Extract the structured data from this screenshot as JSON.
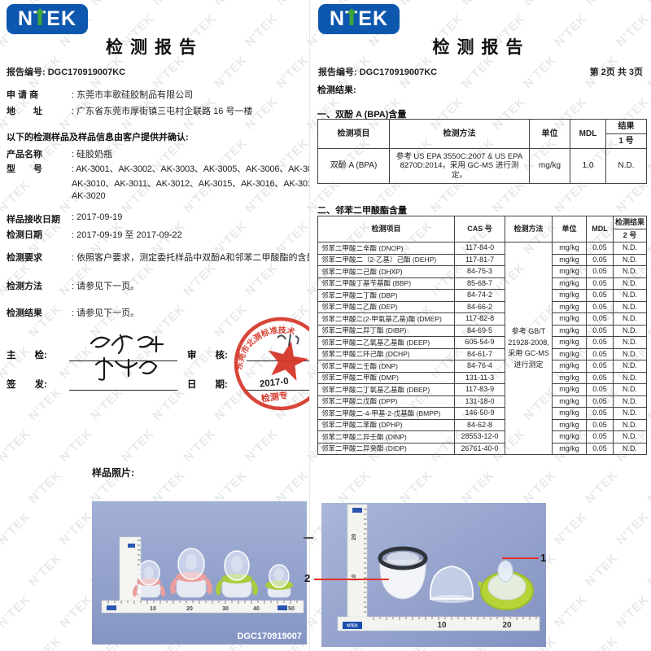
{
  "watermark_text": "N'TEK",
  "colors": {
    "logo_blue": "#0d57ae",
    "logo_green": "#3fa33c",
    "stamp_red": "#d53528",
    "annotation_red": "#e23128",
    "photo_bg_top": "#a3b0d6",
    "photo_bg_bottom": "#8595c3"
  },
  "page1": {
    "logo_text_n": "N",
    "logo_text_t": "T",
    "logo_text_ek": "EK",
    "title": "检测报告",
    "report_no_line": "报告编号: DGC170919007KC",
    "info_fields": [
      {
        "label": "申 请 商",
        "value": ": 东莞市丰歌硅胶制品有限公司"
      },
      {
        "label": "地　　址",
        "value": ": 广东省东莞市厚街镇三屯村企联路 16 号一楼"
      }
    ],
    "confirm_note": "以下的检测样品及样品信息由客户提供并确认:",
    "product_field": {
      "label": "产品名称",
      "value": ": 硅胶奶瓶"
    },
    "model_field_label": "型　　号",
    "model_lines": [
      ": AK-3001、AK-3002、AK-3003、AK-3005、AK-3006、AK-3007、AK-3",
      "AK-3010、AK-3011、AK-3012、AK-3015、AK-3016、AK-3017、AK-3",
      "AK-3020"
    ],
    "date_fields": [
      {
        "label": "样品接收日期",
        "value": ": 2017-09-19"
      },
      {
        "label": "检测日期",
        "value": ": 2017-09-19 至 2017-09-22"
      }
    ],
    "request_fields": [
      {
        "label": "检测要求",
        "value": ": 依照客户要求，测定委托样品中双酚A和邻苯二甲酸酯的含量。"
      },
      {
        "label": "检测方法",
        "value": ": 请参见下一页。"
      },
      {
        "label": "检测结果",
        "value": ": 请参见下一页。"
      }
    ],
    "signature": {
      "chief_label": "主　　检:",
      "review_label": "审　　核:",
      "issue_label": "签　　发:",
      "date_label": "日　　期:"
    },
    "stamp": {
      "arc_text": "东莞市北测标准技术",
      "date_text": "2017-0",
      "bottom_text": "检测专"
    },
    "photo_section_label": "样品照片:",
    "photo1": {
      "id_text": "DGC170919007",
      "ruler_numbers": [
        "10",
        "20",
        "30",
        "40",
        "50"
      ]
    }
  },
  "page2": {
    "title": "检测报告",
    "report_no_line": "报告编号: DGC170919007KC",
    "page_info": "第 2页 共 3页",
    "results_label": "检测结果:",
    "section1_title": "一、双酚 A (BPA)含量",
    "bpa_table": {
      "headers": {
        "item": "检测项目",
        "method": "检测方法",
        "unit": "单位",
        "mdl": "MDL",
        "result": "结果",
        "result_sub": "1 号"
      },
      "row": {
        "item": "双酚 A (BPA)",
        "method": "参考 US EPA 3550C:2007 & US EPA 8270D:2014，采用 GC-MS 进行测定。",
        "unit": "mg/kg",
        "mdl": "1.0",
        "result": "N.D."
      }
    },
    "section2_title": "二、邻苯二甲酸酯含量",
    "phthalate_table": {
      "headers": {
        "item": "检测项目",
        "cas": "CAS 号",
        "method": "检测方法",
        "unit": "单位",
        "mdl": "MDL",
        "result": "检测结果",
        "result_sub": "2 号"
      },
      "method_merged": "参考 GB/T 21928-2008, 采用 GC-MS 进行测定",
      "rows": [
        [
          "邻苯二甲酸二辛酯 (DNOP)",
          "117-84-0",
          "mg/kg",
          "0.05",
          "N.D."
        ],
        [
          "邻苯二甲酸二（2-乙基）己酯 (DEHP)",
          "117-81-7",
          "mg/kg",
          "0.05",
          "N.D."
        ],
        [
          "邻苯二甲酸二己酯 (DHXP)",
          "84-75-3",
          "mg/kg",
          "0.05",
          "N.D."
        ],
        [
          "邻苯二甲酸丁基苄基酯 (BBP)",
          "85-68-7",
          "mg/kg",
          "0.05",
          "N.D."
        ],
        [
          "邻苯二甲酸二丁酯 (DBP)",
          "84-74-2",
          "mg/kg",
          "0.05",
          "N.D."
        ],
        [
          "邻苯二甲酸二乙酯 (DEP)",
          "84-66-2",
          "mg/kg",
          "0.05",
          "N.D."
        ],
        [
          "邻苯二甲酸二(2-甲氧基乙基)酯 (DMEP)",
          "117-82-8",
          "mg/kg",
          "0.05",
          "N.D."
        ],
        [
          "邻苯二甲酸二异丁酯 (DIBP)",
          "84-69-5",
          "mg/kg",
          "0.05",
          "N.D."
        ],
        [
          "邻苯二甲酸二乙氧基乙基酯 (DEEP)",
          "605-54-9",
          "mg/kg",
          "0.05",
          "N.D."
        ],
        [
          "邻苯二甲酸二环己酯 (DCHP)",
          "84-61-7",
          "mg/kg",
          "0.05",
          "N.D."
        ],
        [
          "邻苯二甲酸二壬酯 (DNP)",
          "84-76-4",
          "mg/kg",
          "0.05",
          "N.D."
        ],
        [
          "邻苯二甲酸二甲酯 (DMP)",
          "131-11-3",
          "mg/kg",
          "0.05",
          "N.D."
        ],
        [
          "邻苯二甲酸二丁氧基乙基酯 (DBEP)",
          "117-83-9",
          "mg/kg",
          "0.05",
          "N.D."
        ],
        [
          "邻苯二甲酸二戊酯 (DPP)",
          "131-18-0",
          "mg/kg",
          "0.05",
          "N.D."
        ],
        [
          "邻苯二甲酸二-4-甲基-2-戊基酯 (BMPP)",
          "146-50-9",
          "mg/kg",
          "0.05",
          "N.D."
        ],
        [
          "邻苯二甲酸二苯酯 (DPHP)",
          "84-62-8",
          "mg/kg",
          "0.05",
          "N.D."
        ],
        [
          "邻苯二甲酸二异壬酯 (DINP)",
          "28553-12-0",
          "mg/kg",
          "0.05",
          "N.D."
        ],
        [
          "邻苯二甲酸二异癸酯 (DIDP)",
          "26761-40-0",
          "mg/kg",
          "0.05",
          "N.D."
        ]
      ]
    },
    "photo2": {
      "ruler_numbers_h": [
        "10",
        "20"
      ],
      "ruler_numbers_v": [
        "20",
        "10"
      ],
      "ruler_brand": "NTEK",
      "annotation_1": "1",
      "annotation_2": "2"
    }
  }
}
